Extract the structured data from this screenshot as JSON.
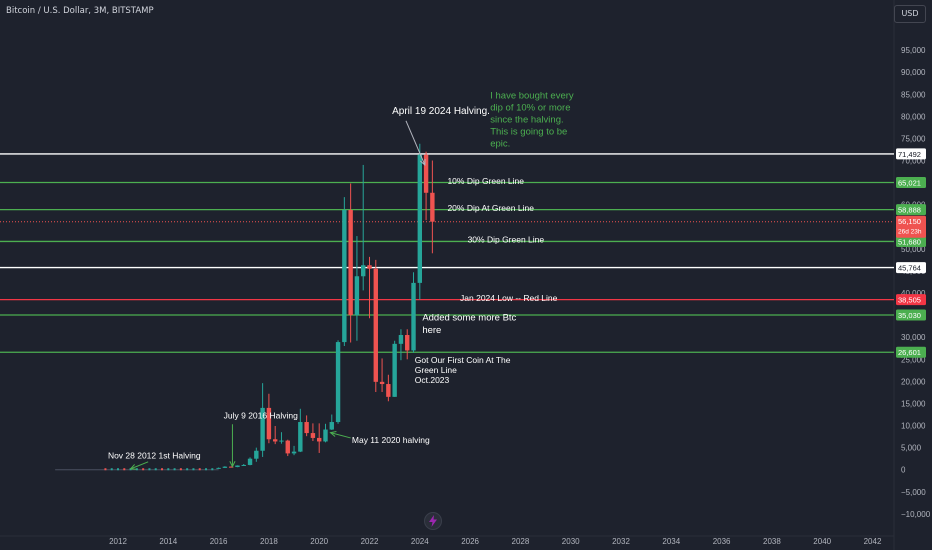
{
  "header": {
    "symbol": "Bitcoin / U.S. Dollar, 3M, BITSTAMP",
    "currency_button": "USD"
  },
  "colors": {
    "background": "#1e222d",
    "up": "#26a69a",
    "down": "#ef5350",
    "green_line": "#4caf50",
    "red_line": "#f23645",
    "white_line": "#ffffff",
    "annotation_green": "#4caf50"
  },
  "icons": [
    "lightning-logo-icon"
  ],
  "chart_data": {
    "type": "candlestick",
    "grid": false,
    "ylim": [
      -15000,
      100000
    ],
    "xlim": [
      2010.0,
      2043.0
    ],
    "y_ticks": [
      "95,000",
      "90,000",
      "85,000",
      "80,000",
      "75,000",
      "70,000",
      "65,000",
      "60,000",
      "55,000",
      "50,000",
      "45,000",
      "40,000",
      "35,000",
      "30,000",
      "25,000",
      "20,000",
      "15,000",
      "10,000",
      "5,000",
      "0",
      "−5,000",
      "−10,000"
    ],
    "y_tick_values": [
      95000,
      90000,
      85000,
      80000,
      75000,
      70000,
      65000,
      60000,
      55000,
      50000,
      45000,
      40000,
      35000,
      30000,
      25000,
      20000,
      15000,
      10000,
      5000,
      0,
      -5000,
      -10000
    ],
    "x_ticks": [
      "2012",
      "2014",
      "2016",
      "2018",
      "2020",
      "2022",
      "2024",
      "2026",
      "2028",
      "2030",
      "2032",
      "2034",
      "2036",
      "2038",
      "2040",
      "2042"
    ],
    "x_tick_values": [
      2012,
      2014,
      2016,
      2018,
      2020,
      2022,
      2024,
      2026,
      2028,
      2030,
      2032,
      2034,
      2036,
      2038,
      2040,
      2042
    ],
    "candles": [
      {
        "t": 2016.0,
        "o": 300,
        "h": 500,
        "l": 200,
        "c": 420
      },
      {
        "t": 2016.25,
        "o": 420,
        "h": 800,
        "l": 380,
        "c": 700
      },
      {
        "t": 2016.5,
        "o": 700,
        "h": 780,
        "l": 500,
        "c": 610
      },
      {
        "t": 2016.75,
        "o": 610,
        "h": 1000,
        "l": 580,
        "c": 960
      },
      {
        "t": 2017.0,
        "o": 960,
        "h": 1300,
        "l": 880,
        "c": 1080
      },
      {
        "t": 2017.25,
        "o": 1080,
        "h": 2800,
        "l": 1000,
        "c": 2500
      },
      {
        "t": 2017.5,
        "o": 2500,
        "h": 5000,
        "l": 1800,
        "c": 4300
      },
      {
        "t": 2017.75,
        "o": 4300,
        "h": 19600,
        "l": 2900,
        "c": 14000
      },
      {
        "t": 2018.0,
        "o": 14000,
        "h": 17200,
        "l": 6000,
        "c": 6900
      },
      {
        "t": 2018.25,
        "o": 6900,
        "h": 9900,
        "l": 5800,
        "c": 6400
      },
      {
        "t": 2018.5,
        "o": 6400,
        "h": 8500,
        "l": 5900,
        "c": 6600
      },
      {
        "t": 2018.75,
        "o": 6600,
        "h": 6800,
        "l": 3100,
        "c": 3700
      },
      {
        "t": 2019.0,
        "o": 3700,
        "h": 5400,
        "l": 3300,
        "c": 4100
      },
      {
        "t": 2019.25,
        "o": 4100,
        "h": 13800,
        "l": 4000,
        "c": 10800
      },
      {
        "t": 2019.5,
        "o": 10800,
        "h": 12300,
        "l": 7600,
        "c": 8300
      },
      {
        "t": 2019.75,
        "o": 8300,
        "h": 10500,
        "l": 6500,
        "c": 7200
      },
      {
        "t": 2020.0,
        "o": 7200,
        "h": 10500,
        "l": 3800,
        "c": 6400
      },
      {
        "t": 2020.25,
        "o": 6400,
        "h": 10400,
        "l": 6200,
        "c": 9100
      },
      {
        "t": 2020.5,
        "o": 9100,
        "h": 12500,
        "l": 9000,
        "c": 10800
      },
      {
        "t": 2020.75,
        "o": 10800,
        "h": 29300,
        "l": 10400,
        "c": 28900
      },
      {
        "t": 2021.0,
        "o": 28900,
        "h": 61700,
        "l": 28000,
        "c": 58800
      },
      {
        "t": 2021.25,
        "o": 58800,
        "h": 64800,
        "l": 28800,
        "c": 35000
      },
      {
        "t": 2021.5,
        "o": 35000,
        "h": 52900,
        "l": 29200,
        "c": 43800
      },
      {
        "t": 2021.75,
        "o": 43800,
        "h": 69000,
        "l": 40600,
        "c": 46300
      },
      {
        "t": 2022.0,
        "o": 46300,
        "h": 48200,
        "l": 34300,
        "c": 45500
      },
      {
        "t": 2022.25,
        "o": 45500,
        "h": 47500,
        "l": 17600,
        "c": 19900
      },
      {
        "t": 2022.5,
        "o": 19900,
        "h": 25200,
        "l": 17600,
        "c": 19400
      },
      {
        "t": 2022.75,
        "o": 19400,
        "h": 21500,
        "l": 15500,
        "c": 16500
      },
      {
        "t": 2023.0,
        "o": 16500,
        "h": 29200,
        "l": 16500,
        "c": 28500
      },
      {
        "t": 2023.25,
        "o": 28500,
        "h": 31800,
        "l": 24800,
        "c": 30500
      },
      {
        "t": 2023.5,
        "o": 30500,
        "h": 31800,
        "l": 25000,
        "c": 27000
      },
      {
        "t": 2023.75,
        "o": 27000,
        "h": 44700,
        "l": 26500,
        "c": 42300
      },
      {
        "t": 2024.0,
        "o": 42300,
        "h": 73800,
        "l": 38500,
        "c": 71300
      },
      {
        "t": 2024.25,
        "o": 71300,
        "h": 72000,
        "l": 56500,
        "c": 62700
      },
      {
        "t": 2024.5,
        "o": 62700,
        "h": 70000,
        "l": 49000,
        "c": 56150
      }
    ],
    "horizontal_lines": [
      {
        "value": 71492,
        "color": "#ffffff",
        "label": "71,492"
      },
      {
        "value": 65021,
        "color": "#4caf50",
        "label": "65,021"
      },
      {
        "value": 58888,
        "color": "#4caf50",
        "label": "58,888"
      },
      {
        "value": 51680,
        "color": "#4caf50",
        "label": "51,680"
      },
      {
        "value": 45764,
        "color": "#ffffff",
        "label": "45,764"
      },
      {
        "value": 38505,
        "color": "#f23645",
        "label": "38,505"
      },
      {
        "value": 35030,
        "color": "#4caf50",
        "label": "35,030"
      },
      {
        "value": 26601,
        "color": "#4caf50",
        "label": "26,601"
      }
    ],
    "current_price": {
      "value": 56150,
      "label": "56,150",
      "countdown": "26d 23h"
    },
    "annotations": [
      {
        "text": "April 19 2024 Halving.",
        "t": 2022.9,
        "v": 80500,
        "color": "#ffffff",
        "size": 10
      },
      {
        "text": "I have bought every",
        "t": 2026.8,
        "v": 84000,
        "color": "#4caf50",
        "size": 9.5
      },
      {
        "text": "dip of 10% or more",
        "t": 2026.8,
        "v": 81300,
        "color": "#4caf50",
        "size": 9.5
      },
      {
        "text": "since the halving.",
        "t": 2026.8,
        "v": 78600,
        "color": "#4caf50",
        "size": 9.5
      },
      {
        "text": "This is going to be",
        "t": 2026.8,
        "v": 75900,
        "color": "#4caf50",
        "size": 9.5
      },
      {
        "text": "epic.",
        "t": 2026.8,
        "v": 73200,
        "color": "#4caf50",
        "size": 9.5
      },
      {
        "text": "10% Dip Green Line",
        "t": 2025.1,
        "v": 64700,
        "color": "#ffffff",
        "size": 8.5
      },
      {
        "text": "20% Dip At Green Line",
        "t": 2025.1,
        "v": 58600,
        "color": "#ffffff",
        "size": 8.5
      },
      {
        "text": "30% Dip Green Line",
        "t": 2025.9,
        "v": 51400,
        "color": "#ffffff",
        "size": 8.5
      },
      {
        "text": "Jan 2024 Low -- Red Line",
        "t": 2025.6,
        "v": 38200,
        "color": "#ffffff",
        "size": 8.5
      },
      {
        "text": "Added some more Btc",
        "t": 2024.1,
        "v": 33800,
        "color": "#ffffff",
        "size": 9.5
      },
      {
        "text": "here",
        "t": 2024.1,
        "v": 31000,
        "color": "#ffffff",
        "size": 9.5
      },
      {
        "text": "Got Our First Coin At The",
        "t": 2023.8,
        "v": 24200,
        "color": "#ffffff",
        "size": 8.5
      },
      {
        "text": "Green Line",
        "t": 2023.8,
        "v": 21900,
        "color": "#ffffff",
        "size": 8.5
      },
      {
        "text": "Oct.2023",
        "t": 2023.8,
        "v": 19600,
        "color": "#ffffff",
        "size": 8.5
      },
      {
        "text": "July 9 2016 Halving",
        "t": 2016.2,
        "v": 11600,
        "color": "#ffffff",
        "size": 8.5
      },
      {
        "text": "May 11 2020  halving",
        "t": 2021.3,
        "v": 6100,
        "color": "#ffffff",
        "size": 8.5
      },
      {
        "text": "Nov 28 2012  1st  Halving",
        "t": 2011.6,
        "v": 2600,
        "color": "#ffffff",
        "size": 8.5
      }
    ]
  }
}
